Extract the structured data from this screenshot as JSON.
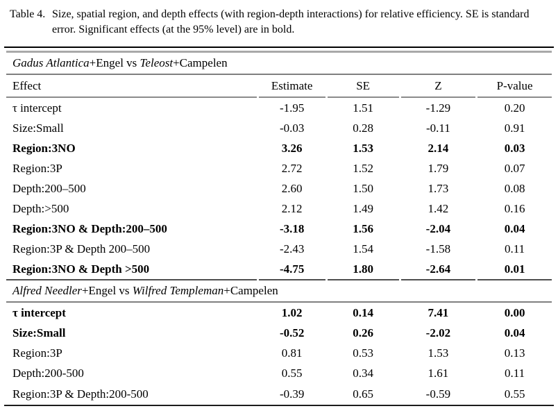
{
  "caption": {
    "label": "Table 4.",
    "text": "Size, spatial region, and depth effects (with region-depth interactions) for relative efficiency. SE is standard error. Significant effects (at the 95% level) are in bold."
  },
  "table": {
    "columns": [
      "Effect",
      "Estimate",
      "SE",
      "Z",
      "P-value"
    ],
    "sections": [
      {
        "title_parts": [
          {
            "text": "Gadus Atlantica",
            "italic": true
          },
          {
            "text": "+Engel vs ",
            "italic": false
          },
          {
            "text": "Teleost",
            "italic": true
          },
          {
            "text": "+Campelen",
            "italic": false
          }
        ],
        "show_header": true,
        "rows": [
          {
            "effect": "τ intercept",
            "values": [
              "-1.95",
              "1.51",
              "-1.29",
              "0.20"
            ],
            "bold": false
          },
          {
            "effect": "Size:Small",
            "values": [
              "-0.03",
              "0.28",
              "-0.11",
              "0.91"
            ],
            "bold": false
          },
          {
            "effect": "Region:3NO",
            "values": [
              "3.26",
              "1.53",
              "2.14",
              "0.03"
            ],
            "bold": true
          },
          {
            "effect": "Region:3P",
            "values": [
              "2.72",
              "1.52",
              "1.79",
              "0.07"
            ],
            "bold": false
          },
          {
            "effect": "Depth:200–500",
            "values": [
              "2.60",
              "1.50",
              "1.73",
              "0.08"
            ],
            "bold": false
          },
          {
            "effect": "Depth:>500",
            "values": [
              "2.12",
              "1.49",
              "1.42",
              "0.16"
            ],
            "bold": false
          },
          {
            "effect": "Region:3NO & Depth:200–500",
            "values": [
              "-3.18",
              "1.56",
              "-2.04",
              "0.04"
            ],
            "bold": true
          },
          {
            "effect": "Region:3P & Depth 200–500",
            "values": [
              "-2.43",
              "1.54",
              "-1.58",
              "0.11"
            ],
            "bold": false
          },
          {
            "effect": "Region:3NO & Depth >500",
            "values": [
              "-4.75",
              "1.80",
              "-2.64",
              "0.01"
            ],
            "bold": true
          }
        ]
      },
      {
        "title_parts": [
          {
            "text": "Alfred Needler",
            "italic": true
          },
          {
            "text": "+Engel vs ",
            "italic": false
          },
          {
            "text": "Wilfred Templeman",
            "italic": true
          },
          {
            "text": "+Campelen",
            "italic": false
          }
        ],
        "show_header": false,
        "rows": [
          {
            "effect": "τ intercept",
            "values": [
              "1.02",
              "0.14",
              "7.41",
              "0.00"
            ],
            "bold": true
          },
          {
            "effect": "Size:Small",
            "values": [
              "-0.52",
              "0.26",
              "-2.02",
              "0.04"
            ],
            "bold": true
          },
          {
            "effect": "Region:3P",
            "values": [
              "0.81",
              "0.53",
              "1.53",
              "0.13"
            ],
            "bold": false
          },
          {
            "effect": "Depth:200-500",
            "values": [
              "0.55",
              "0.34",
              "1.61",
              "0.11"
            ],
            "bold": false
          },
          {
            "effect": "Region:3P & Depth:200-500",
            "values": [
              "-0.39",
              "0.65",
              "-0.59",
              "0.55"
            ],
            "bold": false
          }
        ]
      }
    ]
  }
}
